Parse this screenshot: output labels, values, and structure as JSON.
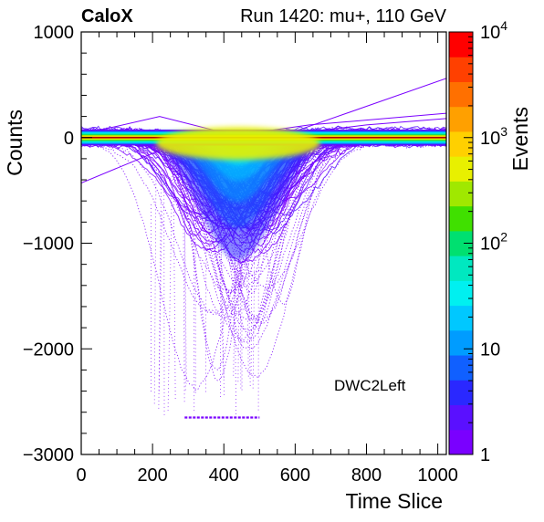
{
  "header": {
    "experiment": "CaloX",
    "run_label": "Run 1420: mu+, 110 GeV"
  },
  "chart_data": {
    "type": "heatmap",
    "xlabel": "Time Slice",
    "ylabel": "Counts",
    "zlabel": "Events",
    "xlim": [
      0,
      1024
    ],
    "ylim": [
      -3000,
      1000
    ],
    "zlim": [
      1,
      10000
    ],
    "z_log_scale": true,
    "x_ticks": [
      0,
      200,
      400,
      600,
      800,
      1000
    ],
    "x_tick_labels": [
      "0",
      "200",
      "400",
      "600",
      "800",
      "1000"
    ],
    "y_ticks": [
      1000,
      0,
      -1000,
      -2000,
      -3000
    ],
    "y_tick_labels": [
      "1000",
      "0",
      "−1000",
      "−2000",
      "−3000"
    ],
    "z_ticks": [
      1,
      10,
      100,
      1000,
      10000
    ],
    "z_tick_labels": [
      {
        "base": "1",
        "exp": ""
      },
      {
        "base": "10",
        "exp": ""
      },
      {
        "base": "10",
        "exp": "2"
      },
      {
        "base": "10",
        "exp": "3"
      },
      {
        "base": "10",
        "exp": "4"
      }
    ],
    "annotation": "DWC2Left",
    "baseline_band": {
      "x": [
        0,
        1024
      ],
      "y_center": 0,
      "half_width": 60
    },
    "pulse": {
      "core_min_y": -1200,
      "core_x_range": [
        200,
        600
      ],
      "peak_x": 440,
      "saturation_y": -2650,
      "saturation_x_range": [
        290,
        500
      ]
    },
    "palette": [
      "#7a00ff",
      "#5a10ff",
      "#2a28ff",
      "#1060ff",
      "#009cff",
      "#00c8ff",
      "#00f0f0",
      "#00e8c0",
      "#00e070",
      "#40e000",
      "#a0e800",
      "#e8f000",
      "#ffd000",
      "#ffa000",
      "#ff7000",
      "#ff4000",
      "#ff0000"
    ]
  }
}
